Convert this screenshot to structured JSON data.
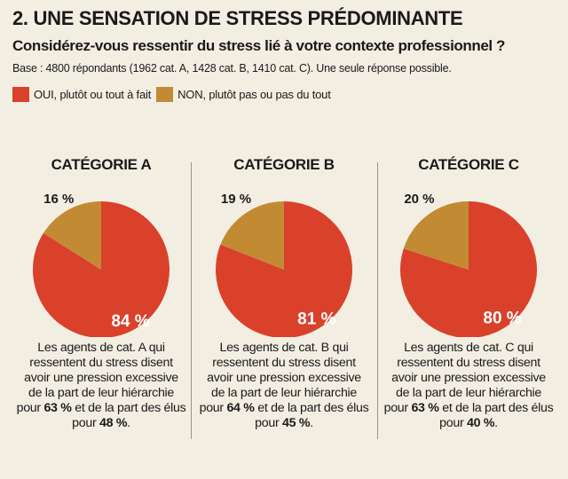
{
  "header": {
    "title": "2. UNE SENSATION DE STRESS PRÉDOMINANTE",
    "question": "Considérez-vous ressentir du stress lié à votre contexte professionnel ?",
    "base": "Base : 4800 répondants (1962 cat. A, 1428 cat. B, 1410 cat. C). Une seule réponse possible."
  },
  "legend": {
    "yes_label": "OUI, plutôt ou tout à fait",
    "no_label": "NON, plutôt pas ou pas du tout"
  },
  "colors": {
    "yes": "#d9412b",
    "no": "#c38a34"
  },
  "chart_data": [
    {
      "type": "pie",
      "title": "CATÉGORIE A",
      "slices": [
        {
          "name": "OUI, plutôt ou tout à fait",
          "value": 84,
          "label": "84 %"
        },
        {
          "name": "NON, plutôt pas ou pas du tout",
          "value": 16,
          "label": "16 %"
        }
      ]
    },
    {
      "type": "pie",
      "title": "CATÉGORIE B",
      "slices": [
        {
          "name": "OUI, plutôt ou tout à fait",
          "value": 81,
          "label": "81 %"
        },
        {
          "name": "NON, plutôt pas ou pas du tout",
          "value": 19,
          "label": "19 %"
        }
      ]
    },
    {
      "type": "pie",
      "title": "CATÉGORIE C",
      "slices": [
        {
          "name": "OUI, plutôt ou tout à fait",
          "value": 80,
          "label": "80 %"
        },
        {
          "name": "NON, plutôt pas ou pas du tout",
          "value": 20,
          "label": "20 %"
        }
      ]
    }
  ],
  "panels": [
    {
      "desc_pre": "Les agents de cat. A qui ressentent du stress disent avoir une pression excessive de la part de leur hiérarchie pour ",
      "hier": "63 %",
      "desc_mid": " et de la part des élus pour ",
      "elus": "48 %",
      "desc_post": "."
    },
    {
      "desc_pre": "Les agents de cat. B qui ressentent du stress disent avoir une pression excessive de la part de leur hiérarchie pour ",
      "hier": "64 %",
      "desc_mid": " et de la part des élus pour ",
      "elus": "45 %",
      "desc_post": "."
    },
    {
      "desc_pre": "Les agents de cat. C qui ressentent du stress disent avoir une pression excessive de la part de leur hiérarchie pour ",
      "hier": "63 %",
      "desc_mid": " et de la part des élus pour ",
      "elus": "40 %",
      "desc_post": "."
    }
  ]
}
